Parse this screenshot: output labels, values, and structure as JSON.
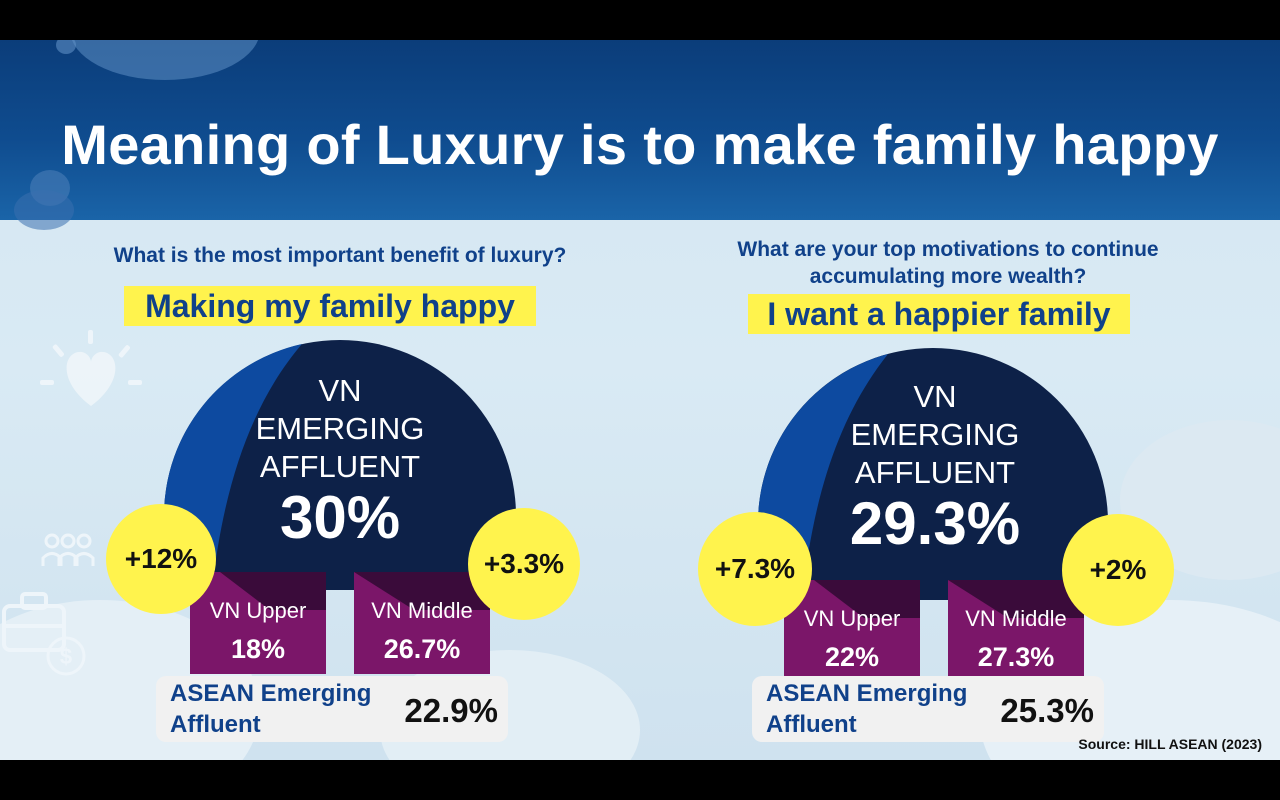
{
  "title": "Meaning of Luxury is to make family happy",
  "source": "Source: HILL ASEAN (2023)",
  "colors": {
    "header": "#0f4c8f",
    "dome": "#0d2148",
    "dome_edge": "#0d4aa0",
    "box": "#7b1669",
    "box_shade": "#3a0b3a",
    "highlight": "#fff34d",
    "heading_text": "#10418a"
  },
  "panels": [
    {
      "question": "What is the most important benefit of luxury?",
      "answer": "Making my family happy",
      "dome_label": "VN EMERGING AFFLUENT",
      "dome_value": "30%",
      "left_delta": "+12%",
      "right_delta": "+3.3%",
      "upper_label": "VN Upper",
      "upper_value": "18%",
      "middle_label": "VN Middle",
      "middle_value": "26.7%",
      "asean_label": "ASEAN Emerging Affluent",
      "asean_value": "22.9%"
    },
    {
      "question": "What are your top motivations to continue accumulating more wealth?",
      "answer": "I want a happier family",
      "dome_label": "VN EMERGING AFFLUENT",
      "dome_value": "29.3%",
      "left_delta": "+7.3%",
      "right_delta": "+2%",
      "upper_label": "VN Upper",
      "upper_value": "22%",
      "middle_label": "VN Middle",
      "middle_value": "27.3%",
      "asean_label": "ASEAN Emerging Affluent",
      "asean_value": "25.3%"
    }
  ]
}
